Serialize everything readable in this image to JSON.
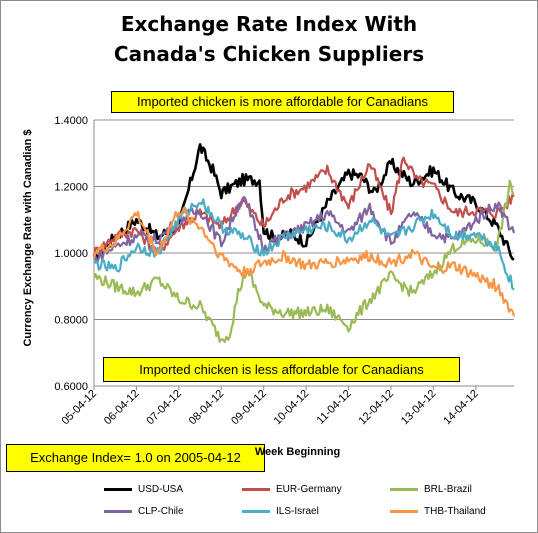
{
  "chart_data": {
    "type": "line",
    "title": "Exchange Rate Index With Canada's Chicken Suppliers",
    "title_lines": [
      "Exchange Rate Index With",
      "Canada's Chicken Suppliers"
    ],
    "xlabel": "Week Beginning",
    "ylabel": "Currency Exchange  Rate with Canadian  $",
    "ylim": [
      0.6,
      1.4
    ],
    "yticks": [
      "0.6000",
      "0.8000",
      "1.0000",
      "1.2000",
      "1.4000"
    ],
    "ytick_values": [
      0.6,
      0.8,
      1.0,
      1.2,
      1.4
    ],
    "xticks": [
      "05-04-12",
      "06-04-12",
      "07-04-12",
      "08-04-12",
      "09-04-12",
      "10-04-12",
      "11-04-12",
      "12-04-12",
      "13-04-12",
      "14-04-12"
    ],
    "x_range_years": [
      2005.0,
      2014.9
    ],
    "grid": "horizontal",
    "legend_position": "bottom",
    "annotations": {
      "top": "Imported chicken is more affordable for Canadians",
      "bottom": "Imported chicken is less affordable for Canadians",
      "index_note": "Exchange Index= 1.0 on 2005-04-12"
    },
    "series": [
      {
        "name": "USD-USA",
        "color": "#000000",
        "x": [
          2005.0,
          2005.5,
          2006.0,
          2006.5,
          2007.0,
          2007.5,
          2007.8,
          2008.0,
          2008.5,
          2008.9,
          2009.0,
          2009.3,
          2009.6,
          2009.9,
          2010.0,
          2010.5,
          2011.0,
          2011.3,
          2011.6,
          2012.0,
          2012.5,
          2013.0,
          2013.5,
          2014.0,
          2014.5,
          2014.9
        ],
        "y": [
          0.98,
          1.05,
          1.1,
          1.05,
          1.08,
          1.32,
          1.25,
          1.18,
          1.22,
          1.22,
          1.07,
          1.04,
          1.06,
          1.04,
          1.03,
          1.15,
          1.24,
          1.23,
          1.18,
          1.27,
          1.21,
          1.25,
          1.18,
          1.15,
          1.08,
          0.98
        ]
      },
      {
        "name": "EUR-Germany",
        "color": "#c0504d",
        "x": [
          2005.0,
          2005.5,
          2006.0,
          2006.5,
          2007.0,
          2007.5,
          2008.0,
          2008.5,
          2009.0,
          2009.5,
          2010.0,
          2010.5,
          2011.0,
          2011.5,
          2012.0,
          2012.3,
          2012.6,
          2013.0,
          2013.5,
          2014.0,
          2014.5,
          2014.9
        ],
        "y": [
          1.0,
          1.05,
          1.07,
          1.0,
          1.08,
          1.12,
          1.08,
          1.16,
          1.08,
          1.17,
          1.2,
          1.25,
          1.14,
          1.27,
          1.12,
          1.29,
          1.22,
          1.2,
          1.12,
          1.13,
          1.12,
          1.17
        ]
      },
      {
        "name": "BRL-Brazil",
        "color": "#9bbb59",
        "x": [
          2005.0,
          2005.5,
          2006.0,
          2006.5,
          2007.0,
          2007.5,
          2008.0,
          2008.2,
          2008.4,
          2008.6,
          2009.0,
          2009.5,
          2010.0,
          2010.5,
          2011.0,
          2011.5,
          2012.0,
          2012.5,
          2013.0,
          2013.5,
          2014.0,
          2014.5,
          2014.8,
          2014.9
        ],
        "y": [
          0.93,
          0.9,
          0.88,
          0.92,
          0.86,
          0.84,
          0.74,
          0.76,
          0.88,
          0.95,
          0.84,
          0.82,
          0.82,
          0.83,
          0.78,
          0.86,
          0.93,
          0.88,
          0.94,
          1.02,
          1.04,
          1.02,
          1.2,
          1.18
        ]
      },
      {
        "name": "CLP-Chile",
        "color": "#8064a2",
        "x": [
          2005.0,
          2005.5,
          2006.0,
          2006.5,
          2007.0,
          2007.5,
          2008.0,
          2008.5,
          2009.0,
          2009.5,
          2010.0,
          2010.5,
          2011.0,
          2011.5,
          2012.0,
          2012.5,
          2013.0,
          2013.5,
          2014.0,
          2014.5,
          2014.9
        ],
        "y": [
          0.98,
          1.02,
          1.05,
          1.04,
          1.1,
          1.13,
          1.03,
          1.17,
          1.02,
          1.05,
          1.08,
          1.12,
          1.06,
          1.14,
          1.03,
          1.12,
          1.06,
          1.04,
          1.1,
          1.15,
          1.06
        ]
      },
      {
        "name": "ILS-Israel",
        "color": "#4bacc6",
        "x": [
          2005.0,
          2005.5,
          2006.0,
          2006.5,
          2007.0,
          2007.5,
          2008.0,
          2008.5,
          2009.0,
          2009.5,
          2010.0,
          2010.5,
          2011.0,
          2011.5,
          2012.0,
          2012.5,
          2013.0,
          2013.5,
          2014.0,
          2014.5,
          2014.9
        ],
        "y": [
          0.97,
          0.95,
          1.02,
          1.0,
          1.1,
          1.16,
          1.08,
          1.05,
          1.0,
          1.05,
          1.07,
          1.08,
          1.04,
          1.1,
          1.04,
          1.08,
          1.12,
          1.05,
          1.06,
          1.02,
          0.89
        ]
      },
      {
        "name": "THB-Thailand",
        "color": "#f79646",
        "x": [
          2005.0,
          2005.5,
          2006.0,
          2006.5,
          2007.0,
          2007.5,
          2008.0,
          2008.5,
          2009.0,
          2009.5,
          2010.0,
          2010.5,
          2011.0,
          2011.5,
          2012.0,
          2012.5,
          2013.0,
          2013.5,
          2014.0,
          2014.5,
          2014.9
        ],
        "y": [
          1.0,
          1.03,
          1.12,
          1.0,
          1.13,
          1.08,
          0.99,
          0.94,
          0.97,
          0.99,
          0.96,
          0.97,
          0.98,
          0.99,
          0.97,
          1.0,
          0.95,
          0.96,
          0.93,
          0.9,
          0.81
        ]
      }
    ]
  }
}
